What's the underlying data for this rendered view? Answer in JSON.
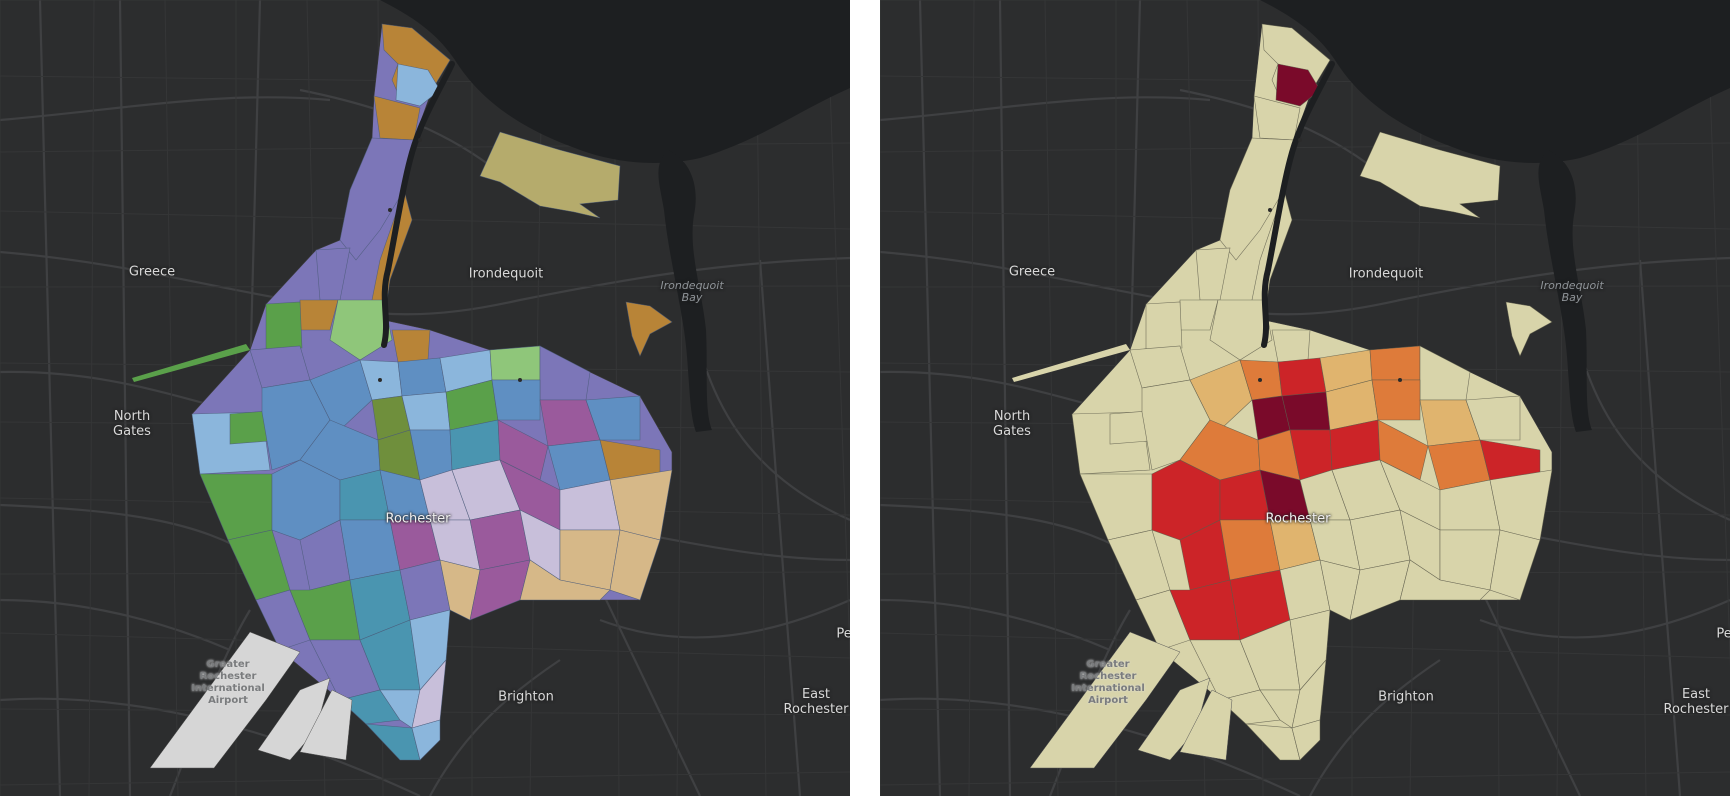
{
  "maps": [
    {
      "id": "left",
      "scheme": "categorical",
      "colors": {
        "background": "#2c2d2e",
        "water": "#1d1f21",
        "road": "#3f4042",
        "airport": "#d6d6d6",
        "c1": "#7c76b8",
        "c2": "#5f8fc2",
        "c3": "#8bb6dc",
        "c4": "#5aa04a",
        "c5": "#8fc67a",
        "c6": "#b88437",
        "c7": "#c8bfda",
        "c8": "#9a5a9c",
        "c9": "#d6b888",
        "c10": "#b5ab6c",
        "c11": "#4a95b0",
        "c12": "#6f8f3c"
      }
    },
    {
      "id": "right",
      "scheme": "choropleth",
      "colors": {
        "background": "#2c2d2e",
        "water": "#1d1f21",
        "road": "#3f4042",
        "r1": "#d8d4aa",
        "r2": "#e0b46e",
        "r3": "#de7b3a",
        "r4": "#cc2428",
        "r5": "#7a0a2a"
      }
    }
  ],
  "place_labels": [
    {
      "id": "greece",
      "text": "Greece"
    },
    {
      "id": "irondequoit",
      "text": "Irondequoit"
    },
    {
      "id": "irondequoit-bay",
      "text": "Irondequoit\nBay"
    },
    {
      "id": "north-gates",
      "text": "North\nGates"
    },
    {
      "id": "rochester",
      "text": "Rochester"
    },
    {
      "id": "airport",
      "text": "Greater\nRochester\nInternational\nAirport"
    },
    {
      "id": "brighton",
      "text": "Brighton"
    },
    {
      "id": "east-rochester",
      "text": "East\nRochester"
    },
    {
      "id": "pe",
      "text": "Pe"
    }
  ]
}
